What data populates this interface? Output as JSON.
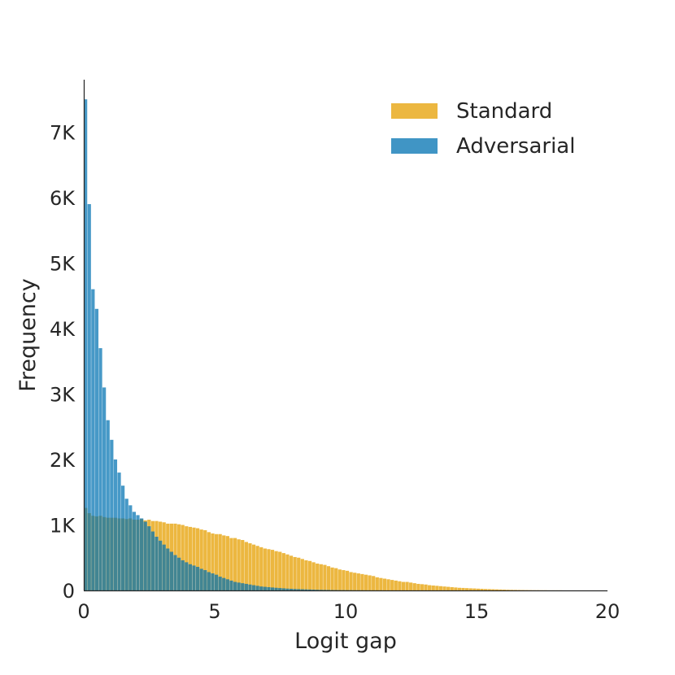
{
  "chart_data": {
    "type": "bar",
    "subtype": "overlaid-histogram",
    "xlabel": "Logit gap",
    "ylabel": "Frequency",
    "xlim": [
      0,
      20
    ],
    "ylim": [
      0,
      7800
    ],
    "x_ticks": [
      {
        "value": 0,
        "label": "0"
      },
      {
        "value": 5,
        "label": "5"
      },
      {
        "value": 10,
        "label": "10"
      },
      {
        "value": 15,
        "label": "15"
      },
      {
        "value": 20,
        "label": "20"
      }
    ],
    "y_ticks": [
      {
        "value": 0,
        "label": "0"
      },
      {
        "value": 1000,
        "label": "1K"
      },
      {
        "value": 2000,
        "label": "2K"
      },
      {
        "value": 3000,
        "label": "3K"
      },
      {
        "value": 4000,
        "label": "4K"
      },
      {
        "value": 5000,
        "label": "5K"
      },
      {
        "value": 6000,
        "label": "6K"
      },
      {
        "value": 7000,
        "label": "7K"
      }
    ],
    "grid": false,
    "legend_position": "top-right",
    "bin_width": 0.1428,
    "series": [
      {
        "name": "Standard",
        "color": "#e69f00",
        "values": [
          1260,
          1180,
          1140,
          1130,
          1140,
          1120,
          1110,
          1110,
          1110,
          1100,
          1100,
          1090,
          1100,
          1080,
          1080,
          1090,
          1070,
          1080,
          1060,
          1060,
          1050,
          1040,
          1020,
          1020,
          1020,
          1010,
          1000,
          980,
          970,
          960,
          950,
          930,
          920,
          890,
          870,
          860,
          860,
          840,
          830,
          800,
          800,
          780,
          770,
          740,
          720,
          700,
          680,
          660,
          640,
          630,
          620,
          600,
          590,
          570,
          550,
          530,
          510,
          500,
          480,
          460,
          450,
          430,
          410,
          400,
          390,
          370,
          350,
          340,
          320,
          310,
          300,
          280,
          270,
          260,
          250,
          240,
          230,
          220,
          200,
          190,
          180,
          170,
          160,
          150,
          140,
          130,
          130,
          120,
          110,
          100,
          95,
          90,
          80,
          75,
          70,
          65,
          60,
          55,
          50,
          45,
          40,
          38,
          35,
          32,
          30,
          27,
          25,
          22,
          20,
          18,
          16,
          14,
          12,
          10,
          9,
          8,
          7,
          6,
          5,
          4,
          3,
          3,
          2,
          2,
          1,
          1,
          1,
          1,
          0,
          0,
          0,
          0,
          0,
          0,
          0,
          0,
          0,
          0,
          0,
          0
        ]
      },
      {
        "name": "Adversarial",
        "color": "#0072b2",
        "values": [
          7500,
          5900,
          4600,
          4300,
          3700,
          3100,
          2600,
          2300,
          2000,
          1800,
          1600,
          1400,
          1300,
          1200,
          1150,
          1100,
          1050,
          980,
          900,
          820,
          760,
          700,
          640,
          590,
          540,
          500,
          460,
          430,
          400,
          380,
          360,
          330,
          310,
          280,
          260,
          240,
          210,
          190,
          170,
          150,
          130,
          120,
          110,
          100,
          90,
          80,
          70,
          60,
          55,
          50,
          45,
          40,
          36,
          32,
          28,
          25,
          22,
          20,
          18,
          16,
          14,
          12,
          10,
          9,
          8,
          7,
          6,
          5,
          4,
          4,
          3,
          3,
          2,
          2,
          2,
          1,
          1,
          1,
          1,
          1,
          0,
          0,
          0,
          0,
          0,
          0,
          0,
          0,
          0,
          0,
          0,
          0,
          0,
          0,
          0,
          0,
          0,
          0,
          0,
          0,
          0,
          0,
          0,
          0,
          0,
          0,
          0,
          0,
          0,
          0,
          0,
          0,
          0,
          0,
          0,
          0,
          0,
          0,
          0,
          0,
          0,
          0,
          0,
          0,
          0,
          0,
          0,
          0,
          0,
          0,
          0,
          0,
          0,
          0,
          0,
          0,
          0,
          0,
          0,
          0
        ]
      }
    ]
  }
}
